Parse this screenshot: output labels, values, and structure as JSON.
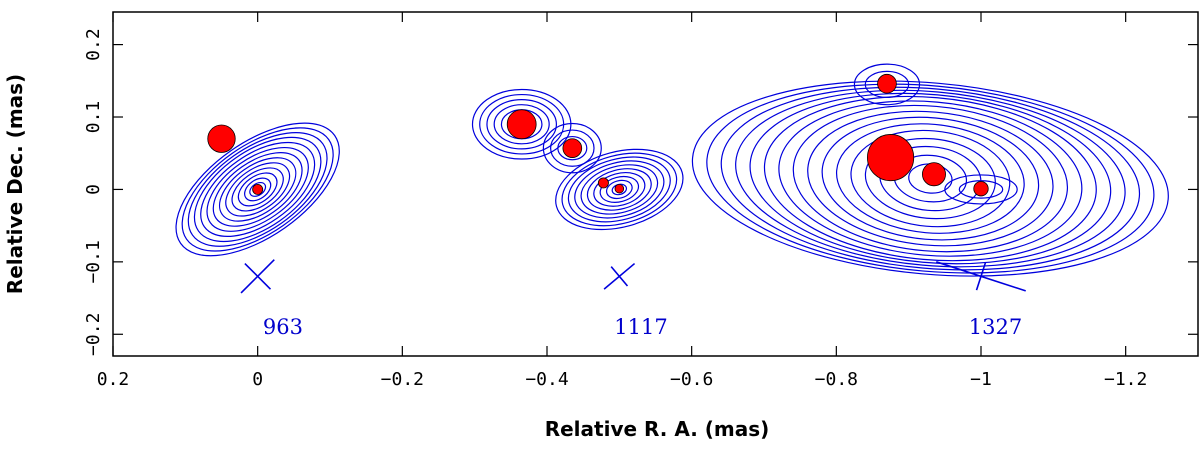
{
  "chart_data": {
    "type": "contour",
    "xlabel": "Relative R. A. (mas)",
    "ylabel": "Relative Dec. (mas)",
    "xlim": [
      0.2,
      -1.3
    ],
    "ylim": [
      -0.23,
      0.245
    ],
    "xticks": [
      0.2,
      0,
      -0.2,
      -0.4,
      -0.6,
      -0.8,
      -1,
      -1.2
    ],
    "xtick_labels": [
      "0.2",
      "0",
      "−0.2",
      "−0.4",
      "−0.6",
      "−0.8",
      "−1",
      "−1.2"
    ],
    "yticks": [
      -0.2,
      -0.1,
      0,
      0.1,
      0.2
    ],
    "ytick_labels": [
      "−0.2",
      "−0.1",
      "0",
      "0.1",
      "0.2"
    ],
    "grid": false,
    "colors": {
      "contours": "#0000dd",
      "components": "#ff0000",
      "labels": "#0000cc"
    },
    "epochs": [
      {
        "label": "963",
        "label_pos": [
          -0.035,
          -0.19
        ],
        "beam": {
          "center": [
            0.0,
            -0.12
          ],
          "major": 0.065,
          "minor": 0.05,
          "pa_deg": -45
        },
        "contours": [
          {
            "center": [
              0.0,
              0.0
            ],
            "levels": [
              [
                0.012,
                0.008
              ],
              [
                0.02,
                0.013
              ],
              [
                0.03,
                0.018
              ],
              [
                0.04,
                0.023
              ],
              [
                0.05,
                0.028
              ],
              [
                0.06,
                0.033
              ],
              [
                0.07,
                0.038
              ],
              [
                0.08,
                0.043
              ],
              [
                0.09,
                0.048
              ],
              [
                0.1,
                0.053
              ],
              [
                0.11,
                0.057
              ],
              [
                0.12,
                0.061
              ],
              [
                0.13,
                0.065
              ]
            ],
            "pa_deg": -35
          }
        ],
        "components": [
          {
            "x": 0.05,
            "y": 0.07,
            "r": 0.019
          },
          {
            "x": 0.0,
            "y": 0.0,
            "r": 0.007
          }
        ]
      },
      {
        "label": "1117",
        "label_pos": [
          -0.53,
          -0.19
        ],
        "beam": {
          "center": [
            -0.5,
            -0.12
          ],
          "major": 0.055,
          "minor": 0.035,
          "pa_deg": -40
        },
        "contours": [
          {
            "center": [
              -0.5,
              0.0
            ],
            "levels": [
              [
                0.01,
                0.007
              ],
              [
                0.018,
                0.012
              ],
              [
                0.027,
                0.017
              ],
              [
                0.036,
                0.022
              ],
              [
                0.045,
                0.027
              ],
              [
                0.054,
                0.032
              ],
              [
                0.063,
                0.037
              ],
              [
                0.072,
                0.042
              ],
              [
                0.081,
                0.047
              ],
              [
                0.09,
                0.052
              ]
            ],
            "pa_deg": -15
          },
          {
            "center": [
              -0.365,
              0.09
            ],
            "levels": [
              [
                0.028,
                0.02
              ],
              [
                0.038,
                0.027
              ],
              [
                0.048,
                0.034
              ],
              [
                0.058,
                0.041
              ],
              [
                0.068,
                0.048
              ]
            ],
            "pa_deg": 0
          },
          {
            "center": [
              -0.435,
              0.057
            ],
            "levels": [
              [
                0.02,
                0.016
              ],
              [
                0.03,
                0.025
              ],
              [
                0.04,
                0.034
              ]
            ],
            "pa_deg": 0
          }
        ],
        "components": [
          {
            "x": -0.365,
            "y": 0.09,
            "r": 0.02
          },
          {
            "x": -0.435,
            "y": 0.057,
            "r": 0.013
          },
          {
            "x": -0.478,
            "y": 0.009,
            "r": 0.007
          },
          {
            "x": -0.5,
            "y": 0.001,
            "r": 0.006
          }
        ]
      },
      {
        "label": "1327",
        "label_pos": [
          -1.02,
          -0.19
        ],
        "beam": {
          "center": [
            -1.0,
            -0.12
          ],
          "major": 0.13,
          "minor": 0.04,
          "pa_deg": 18
        },
        "contours": [
          {
            "center": [
              -0.93,
              0.015
            ],
            "levels": [
              [
                0.03,
                0.02
              ],
              [
                0.05,
                0.032
              ],
              [
                0.07,
                0.044
              ],
              [
                0.09,
                0.055
              ],
              [
                0.11,
                0.066
              ],
              [
                0.13,
                0.075
              ],
              [
                0.15,
                0.084
              ],
              [
                0.17,
                0.092
              ],
              [
                0.19,
                0.1
              ],
              [
                0.21,
                0.106
              ],
              [
                0.23,
                0.112
              ],
              [
                0.25,
                0.116
              ],
              [
                0.27,
                0.12
              ],
              [
                0.29,
                0.124
              ],
              [
                0.31,
                0.128
              ],
              [
                0.33,
                0.132
              ]
            ],
            "pa_deg": 5
          },
          {
            "center": [
              -1.0,
              0.0
            ],
            "levels": [
              [
                0.03,
                0.012
              ],
              [
                0.05,
                0.02
              ]
            ],
            "pa_deg": 0
          },
          {
            "center": [
              -0.87,
              0.145
            ],
            "levels": [
              [
                0.03,
                0.018
              ],
              [
                0.045,
                0.028
              ]
            ],
            "pa_deg": 0
          }
        ],
        "components": [
          {
            "x": -0.87,
            "y": 0.146,
            "r": 0.013
          },
          {
            "x": -0.875,
            "y": 0.044,
            "r": 0.032
          },
          {
            "x": -0.935,
            "y": 0.021,
            "r": 0.016
          },
          {
            "x": -1.0,
            "y": 0.001,
            "r": 0.01
          }
        ]
      }
    ]
  }
}
